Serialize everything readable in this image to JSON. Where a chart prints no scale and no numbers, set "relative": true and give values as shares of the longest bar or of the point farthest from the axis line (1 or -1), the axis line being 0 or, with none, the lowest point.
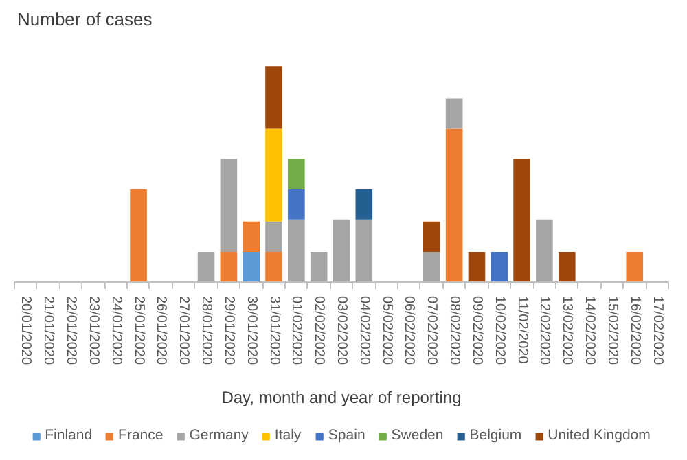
{
  "chart_data": {
    "type": "bar",
    "stacked": true,
    "relative": true,
    "legend": "bottom",
    "ylabel": "Number of cases",
    "xlabel": "Day, month and year of reporting",
    "categories": [
      "20/01/2020",
      "21/01/2020",
      "22/01/2020",
      "23/01/2020",
      "24/01/2020",
      "25/01/2020",
      "26/01/2020",
      "27/01/2020",
      "28/01/2020",
      "29/01/2020",
      "30/01/2020",
      "31/01/2020",
      "01/02/2020",
      "02/02/2020",
      "03/02/2020",
      "04/02/2020",
      "05/02/2020",
      "06/02/2020",
      "07/02/2020",
      "08/02/2020",
      "09/02/2020",
      "10/02/2020",
      "11/02/2020",
      "12/02/2020",
      "13/02/2020",
      "14/02/2020",
      "15/02/2020",
      "16/02/2020",
      "17/02/2020"
    ],
    "series": [
      {
        "name": "Finland",
        "color": "#5b9bd5",
        "values": [
          null,
          null,
          null,
          null,
          null,
          null,
          null,
          null,
          null,
          null,
          0.14,
          null,
          null,
          null,
          null,
          null,
          null,
          null,
          null,
          null,
          null,
          null,
          null,
          null,
          null,
          null,
          null,
          null,
          null
        ]
      },
      {
        "name": "France",
        "color": "#ed7d31",
        "values": [
          null,
          null,
          null,
          null,
          null,
          0.43,
          null,
          null,
          null,
          0.14,
          0.14,
          0.14,
          null,
          null,
          null,
          null,
          null,
          null,
          null,
          0.71,
          null,
          null,
          null,
          null,
          null,
          null,
          null,
          0.14,
          null
        ]
      },
      {
        "name": "Germany",
        "color": "#a5a5a5",
        "values": [
          null,
          null,
          null,
          null,
          null,
          null,
          null,
          null,
          0.14,
          0.43,
          null,
          0.14,
          0.29,
          0.14,
          0.29,
          0.29,
          null,
          null,
          0.14,
          0.14,
          null,
          null,
          null,
          0.29,
          null,
          null,
          null,
          null,
          null
        ]
      },
      {
        "name": "Italy",
        "color": "#ffc000",
        "values": [
          null,
          null,
          null,
          null,
          null,
          null,
          null,
          null,
          null,
          null,
          null,
          0.43,
          null,
          null,
          null,
          null,
          null,
          null,
          null,
          null,
          null,
          null,
          null,
          null,
          null,
          null,
          null,
          null,
          null
        ]
      },
      {
        "name": "Spain",
        "color": "#4472c4",
        "values": [
          null,
          null,
          null,
          null,
          null,
          null,
          null,
          null,
          null,
          null,
          null,
          null,
          0.14,
          null,
          null,
          null,
          null,
          null,
          null,
          null,
          null,
          0.14,
          null,
          null,
          null,
          null,
          null,
          null,
          null
        ]
      },
      {
        "name": "Sweden",
        "color": "#70ad47",
        "values": [
          null,
          null,
          null,
          null,
          null,
          null,
          null,
          null,
          null,
          null,
          null,
          null,
          0.14,
          null,
          null,
          null,
          null,
          null,
          null,
          null,
          null,
          null,
          null,
          null,
          null,
          null,
          null,
          null,
          null
        ]
      },
      {
        "name": "Belgium",
        "color": "#255e91",
        "values": [
          null,
          null,
          null,
          null,
          null,
          null,
          null,
          null,
          null,
          null,
          null,
          null,
          null,
          null,
          null,
          0.14,
          null,
          null,
          null,
          null,
          null,
          null,
          null,
          null,
          null,
          null,
          null,
          null,
          null
        ]
      },
      {
        "name": "United Kingdom",
        "color": "#9e480e",
        "values": [
          null,
          null,
          null,
          null,
          null,
          null,
          null,
          null,
          null,
          null,
          null,
          0.29,
          null,
          null,
          null,
          null,
          null,
          null,
          0.14,
          null,
          0.14,
          null,
          0.57,
          null,
          0.14,
          null,
          null,
          null,
          null
        ]
      }
    ]
  }
}
